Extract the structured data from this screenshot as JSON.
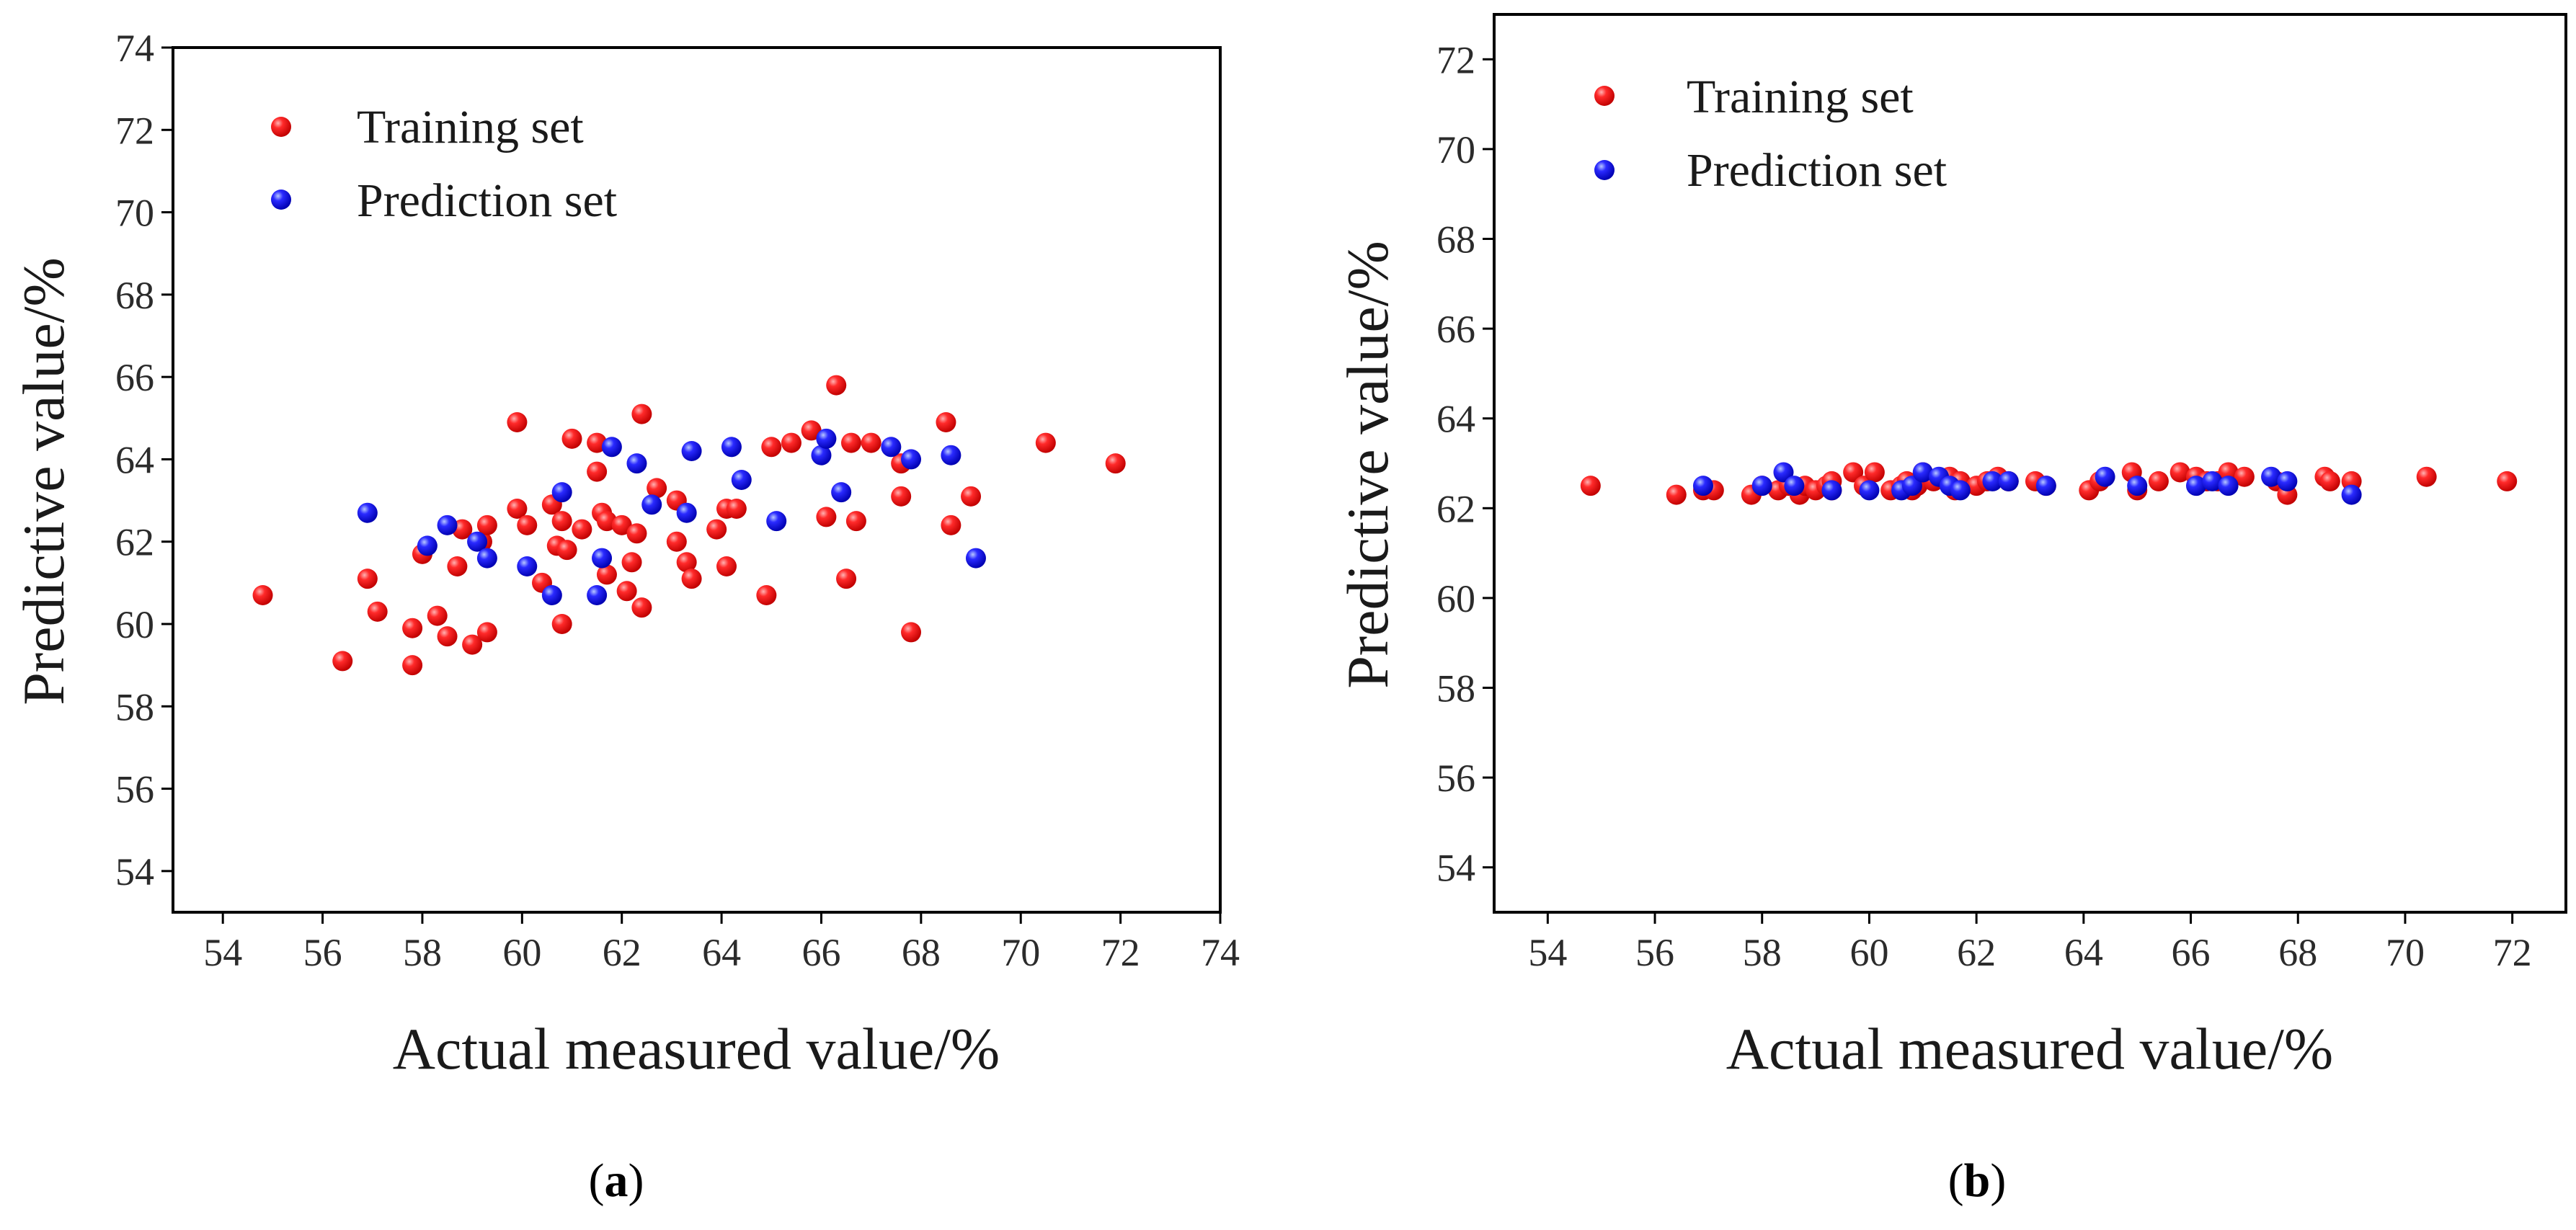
{
  "chart_data": [
    {
      "id": "a",
      "type": "scatter",
      "xlabel": "Actual measured value/%",
      "ylabel": "Predictive value/%",
      "xlim": [
        53,
        74
      ],
      "ylim": [
        53,
        74
      ],
      "xticks": [
        54,
        56,
        58,
        60,
        62,
        64,
        66,
        68,
        70,
        72,
        74
      ],
      "yticks": [
        54,
        56,
        58,
        60,
        62,
        64,
        66,
        68,
        70,
        72,
        74
      ],
      "caption": {
        "open": "(",
        "letter": "a",
        "close": ")"
      },
      "legend": {
        "position": "top-left",
        "entries": [
          "Training set",
          "Prediction set"
        ]
      },
      "series": [
        {
          "name": "Training set",
          "color": "#ff0000",
          "points": [
            [
              54.8,
              60.7
            ],
            [
              56.4,
              59.1
            ],
            [
              56.9,
              61.1
            ],
            [
              57.1,
              60.3
            ],
            [
              57.8,
              59.9
            ],
            [
              57.8,
              59.0
            ],
            [
              58.0,
              61.7
            ],
            [
              58.3,
              60.2
            ],
            [
              58.5,
              59.7
            ],
            [
              58.7,
              61.4
            ],
            [
              58.8,
              62.3
            ],
            [
              59.0,
              59.5
            ],
            [
              59.2,
              62.0
            ],
            [
              59.3,
              59.8
            ],
            [
              59.3,
              62.4
            ],
            [
              59.9,
              64.9
            ],
            [
              59.9,
              62.8
            ],
            [
              60.1,
              62.4
            ],
            [
              60.4,
              61.0
            ],
            [
              60.6,
              62.9
            ],
            [
              60.7,
              61.9
            ],
            [
              60.8,
              62.5
            ],
            [
              60.8,
              60.0
            ],
            [
              60.9,
              61.8
            ],
            [
              61.0,
              64.5
            ],
            [
              61.2,
              62.3
            ],
            [
              61.5,
              64.4
            ],
            [
              61.5,
              63.7
            ],
            [
              61.6,
              62.7
            ],
            [
              61.7,
              61.2
            ],
            [
              61.7,
              62.5
            ],
            [
              62.0,
              62.4
            ],
            [
              62.1,
              60.8
            ],
            [
              62.2,
              61.5
            ],
            [
              62.3,
              62.2
            ],
            [
              62.4,
              65.1
            ],
            [
              62.4,
              60.4
            ],
            [
              62.7,
              63.3
            ],
            [
              63.1,
              63.0
            ],
            [
              63.1,
              62.0
            ],
            [
              63.3,
              61.5
            ],
            [
              63.4,
              61.1
            ],
            [
              63.9,
              62.3
            ],
            [
              64.1,
              62.8
            ],
            [
              64.1,
              61.4
            ],
            [
              64.3,
              62.8
            ],
            [
              64.9,
              60.7
            ],
            [
              65.0,
              64.3
            ],
            [
              65.4,
              64.4
            ],
            [
              65.8,
              64.7
            ],
            [
              66.1,
              62.6
            ],
            [
              66.3,
              65.8
            ],
            [
              66.5,
              61.1
            ],
            [
              66.6,
              64.4
            ],
            [
              66.7,
              62.5
            ],
            [
              67.0,
              64.4
            ],
            [
              67.6,
              63.1
            ],
            [
              67.6,
              63.9
            ],
            [
              67.8,
              59.8
            ],
            [
              68.5,
              64.9
            ],
            [
              68.6,
              62.4
            ],
            [
              69.0,
              63.1
            ],
            [
              70.5,
              64.4
            ],
            [
              71.9,
              63.9
            ]
          ]
        },
        {
          "name": "Prediction set",
          "color": "#0000ff",
          "points": [
            [
              56.9,
              62.7
            ],
            [
              58.1,
              61.9
            ],
            [
              58.5,
              62.4
            ],
            [
              59.1,
              62.0
            ],
            [
              59.3,
              61.6
            ],
            [
              60.1,
              61.4
            ],
            [
              60.6,
              60.7
            ],
            [
              60.8,
              63.2
            ],
            [
              61.5,
              60.7
            ],
            [
              61.6,
              61.6
            ],
            [
              61.8,
              64.3
            ],
            [
              62.3,
              63.9
            ],
            [
              62.6,
              62.9
            ],
            [
              63.3,
              62.7
            ],
            [
              63.4,
              64.2
            ],
            [
              64.2,
              64.3
            ],
            [
              64.4,
              63.5
            ],
            [
              65.1,
              62.5
            ],
            [
              66.0,
              64.1
            ],
            [
              66.1,
              64.5
            ],
            [
              66.4,
              63.2
            ],
            [
              67.4,
              64.3
            ],
            [
              67.8,
              64.0
            ],
            [
              68.6,
              64.1
            ],
            [
              69.1,
              61.6
            ]
          ]
        }
      ]
    },
    {
      "id": "b",
      "type": "scatter",
      "xlabel": "Actual measured value/%",
      "ylabel": "Predictive value/%",
      "xlim": [
        53,
        73
      ],
      "ylim": [
        53,
        73
      ],
      "xticks": [
        54,
        56,
        58,
        60,
        62,
        64,
        66,
        68,
        70,
        72
      ],
      "yticks": [
        54,
        56,
        58,
        60,
        62,
        64,
        66,
        68,
        70,
        72
      ],
      "caption": {
        "open": "(",
        "letter": "b",
        "close": ")"
      },
      "legend": {
        "position": "top-left",
        "entries": [
          "Training set",
          "Prediction set"
        ]
      },
      "series": [
        {
          "name": "Training set",
          "color": "#ff0000",
          "points": [
            [
              54.8,
              62.5
            ],
            [
              56.4,
              62.3
            ],
            [
              56.9,
              62.4
            ],
            [
              57.1,
              62.4
            ],
            [
              57.8,
              62.3
            ],
            [
              58.0,
              62.5
            ],
            [
              58.3,
              62.4
            ],
            [
              58.5,
              62.5
            ],
            [
              58.7,
              62.3
            ],
            [
              58.8,
              62.5
            ],
            [
              59.0,
              62.4
            ],
            [
              59.2,
              62.5
            ],
            [
              59.3,
              62.4
            ],
            [
              59.3,
              62.6
            ],
            [
              59.7,
              62.8
            ],
            [
              59.9,
              62.5
            ],
            [
              60.1,
              62.8
            ],
            [
              60.4,
              62.4
            ],
            [
              60.6,
              62.5
            ],
            [
              60.7,
              62.6
            ],
            [
              60.8,
              62.4
            ],
            [
              60.9,
              62.5
            ],
            [
              61.0,
              62.8
            ],
            [
              61.2,
              62.6
            ],
            [
              61.5,
              62.7
            ],
            [
              61.6,
              62.4
            ],
            [
              61.7,
              62.6
            ],
            [
              62.0,
              62.5
            ],
            [
              62.2,
              62.6
            ],
            [
              62.4,
              62.7
            ],
            [
              62.6,
              62.6
            ],
            [
              63.1,
              62.6
            ],
            [
              63.3,
              62.5
            ],
            [
              64.1,
              62.4
            ],
            [
              64.3,
              62.6
            ],
            [
              64.9,
              62.8
            ],
            [
              65.0,
              62.4
            ],
            [
              65.4,
              62.6
            ],
            [
              65.8,
              62.8
            ],
            [
              66.1,
              62.7
            ],
            [
              66.3,
              62.6
            ],
            [
              66.5,
              62.6
            ],
            [
              66.7,
              62.8
            ],
            [
              67.0,
              62.7
            ],
            [
              67.6,
              62.6
            ],
            [
              67.8,
              62.3
            ],
            [
              68.5,
              62.7
            ],
            [
              68.6,
              62.6
            ],
            [
              69.0,
              62.6
            ],
            [
              70.4,
              62.7
            ],
            [
              71.9,
              62.6
            ]
          ]
        },
        {
          "name": "Prediction set",
          "color": "#0000ff",
          "points": [
            [
              56.9,
              62.5
            ],
            [
              58.0,
              62.5
            ],
            [
              58.4,
              62.8
            ],
            [
              58.6,
              62.5
            ],
            [
              59.3,
              62.4
            ],
            [
              60.0,
              62.4
            ],
            [
              60.6,
              62.4
            ],
            [
              60.8,
              62.5
            ],
            [
              61.0,
              62.8
            ],
            [
              61.3,
              62.7
            ],
            [
              61.5,
              62.5
            ],
            [
              61.7,
              62.4
            ],
            [
              62.3,
              62.6
            ],
            [
              62.6,
              62.6
            ],
            [
              63.3,
              62.5
            ],
            [
              64.4,
              62.7
            ],
            [
              65.0,
              62.5
            ],
            [
              66.1,
              62.5
            ],
            [
              66.4,
              62.6
            ],
            [
              66.7,
              62.5
            ],
            [
              67.5,
              62.7
            ],
            [
              67.8,
              62.6
            ],
            [
              69.0,
              62.3
            ]
          ]
        }
      ]
    }
  ]
}
